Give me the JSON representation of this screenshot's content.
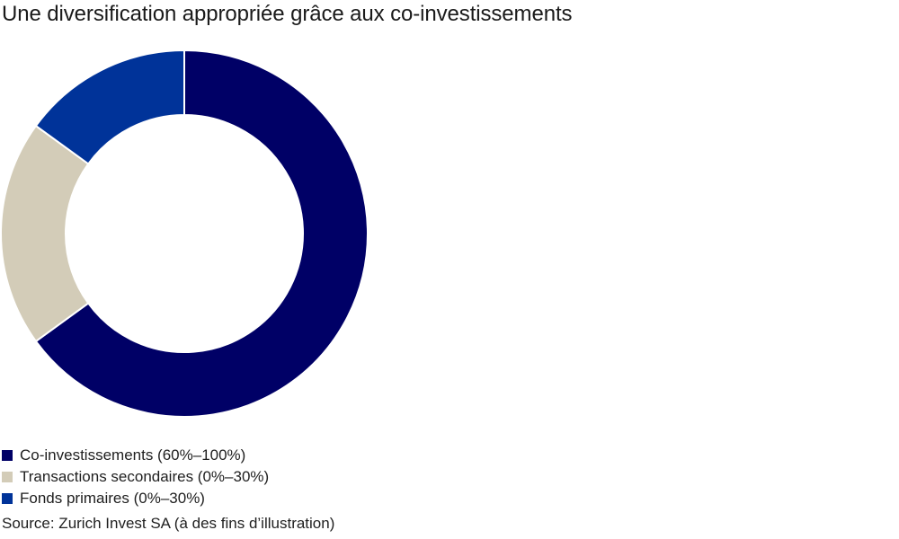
{
  "chart_data": {
    "type": "pie",
    "title": "Une diversification appropriée grâce aux co-investissements",
    "categories": [
      "Co-investissements (60%–100%)",
      "Transactions secondaires (0%–30%)",
      "Fonds primaires (0%–30%)"
    ],
    "values": [
      65,
      20,
      15
    ],
    "colors": [
      "#000066",
      "#d3ccb8",
      "#003399"
    ],
    "donut": true,
    "legend": "bottom-left",
    "source": "Source: Zurich Invest SA (à des fins d’illustration)"
  }
}
